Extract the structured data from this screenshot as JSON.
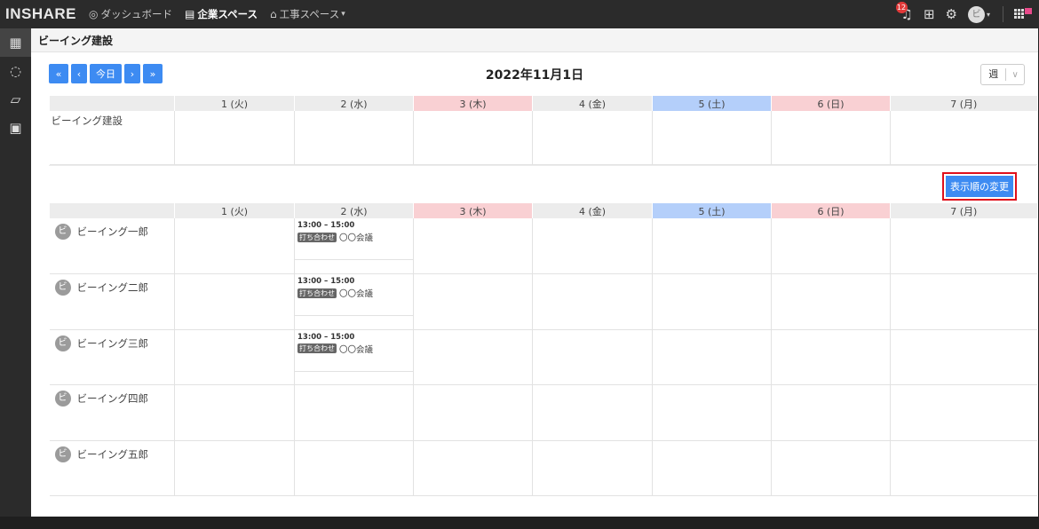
{
  "app": {
    "logo": "INSHARE"
  },
  "nav": {
    "dashboard": "ダッシュボード",
    "company_space": "企業スペース",
    "construction_space": "工事スペース",
    "construction_caret": "▾"
  },
  "topright": {
    "notification_count": "12",
    "user_initial": "ビ"
  },
  "page": {
    "title": "ビーイング建設"
  },
  "toolbar": {
    "first": "«",
    "prev": "‹",
    "today": "今日",
    "next": "›",
    "last": "»",
    "date_title": "2022年11月1日",
    "view_value": "週",
    "view_caret": "∨",
    "order_button": "表示順の変更"
  },
  "days": [
    {
      "label": "1 (火)"
    },
    {
      "label": "2 (水)"
    },
    {
      "label": "3 (木)"
    },
    {
      "label": "4 (金)"
    },
    {
      "label": "5 (土)"
    },
    {
      "label": "6 (日)"
    },
    {
      "label": "7 (月)"
    }
  ],
  "company_row": {
    "name": "ビーイング建設"
  },
  "members": [
    {
      "initial": "ビ",
      "name": "ビーイング一郎"
    },
    {
      "initial": "ビ",
      "name": "ビーイング二郎"
    },
    {
      "initial": "ビ",
      "name": "ビーイング三郎"
    },
    {
      "initial": "ビ",
      "name": "ビーイング四郎"
    },
    {
      "initial": "ビ",
      "name": "ビーイング五郎"
    }
  ],
  "events": [
    {
      "time": "13:00 – 15:00",
      "badge": "打ち合わせ",
      "place": "〇〇会議"
    },
    {
      "time": "13:00 – 15:00",
      "badge": "打ち合わせ",
      "place": "〇〇会議"
    },
    {
      "time": "13:00 – 15:00",
      "badge": "打ち合わせ",
      "place": "〇〇会議"
    }
  ],
  "colors": {
    "primary": "#3d8bf2",
    "highlight_border": "#e0101c",
    "weekend_sat": "#b4cffa",
    "weekend_red": "#f9d0d3",
    "topbar": "#2b2b2b"
  },
  "icons": {
    "dashboard": "dashboard-icon",
    "company": "building-icon",
    "construction": "sitemap-icon",
    "bell": "bell-icon",
    "gift": "gift-icon",
    "gear": "gear-icon",
    "apps": "apps-grid-icon",
    "calendar": "calendar-icon",
    "chat": "chat-icon",
    "folder": "folder-icon",
    "document": "document-icon"
  }
}
